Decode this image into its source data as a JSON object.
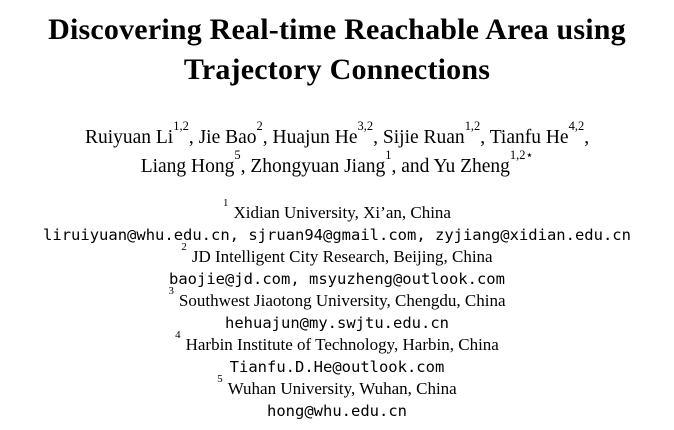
{
  "paper": {
    "title_line1": "Discovering Real-time Reachable Area using",
    "title_line2": "Trajectory Connections",
    "author_lines": [
      [
        {
          "name": "Ruiyuan Li",
          "sup": "1,2",
          "sep": ", "
        },
        {
          "name": "Jie Bao",
          "sup": "2",
          "sep": ", "
        },
        {
          "name": "Huajun He",
          "sup": "3,2",
          "sep": ", "
        },
        {
          "name": "Sijie Ruan",
          "sup": "1,2",
          "sep": ", "
        },
        {
          "name": "Tianfu He",
          "sup": "4,2",
          "sep": ","
        }
      ],
      [
        {
          "name": "Liang Hong",
          "sup": "5",
          "sep": ", "
        },
        {
          "name": "Zhongyuan Jiang",
          "sup": "1",
          "sep": ", and "
        },
        {
          "name": "Yu Zheng",
          "sup": "1,2⋆",
          "sep": ""
        }
      ]
    ],
    "affiliations": [
      {
        "sup": "1",
        "institution": "Xidian University, Xi’an, China",
        "email": "liruiyuan@whu.edu.cn, sjruan94@gmail.com, zyjiang@xidian.edu.cn"
      },
      {
        "sup": "2",
        "institution": "JD Intelligent City Research, Beijing, China",
        "email": "baojie@jd.com, msyuzheng@outlook.com"
      },
      {
        "sup": "3",
        "institution": "Southwest Jiaotong University, Chengdu, China",
        "email": "hehuajun@my.swjtu.edu.cn"
      },
      {
        "sup": "4",
        "institution": "Harbin Institute of Technology, Harbin, China",
        "email": "Tianfu.D.He@outlook.com"
      },
      {
        "sup": "5",
        "institution": "Wuhan University, Wuhan, China",
        "email": "hong@whu.edu.cn"
      }
    ]
  }
}
